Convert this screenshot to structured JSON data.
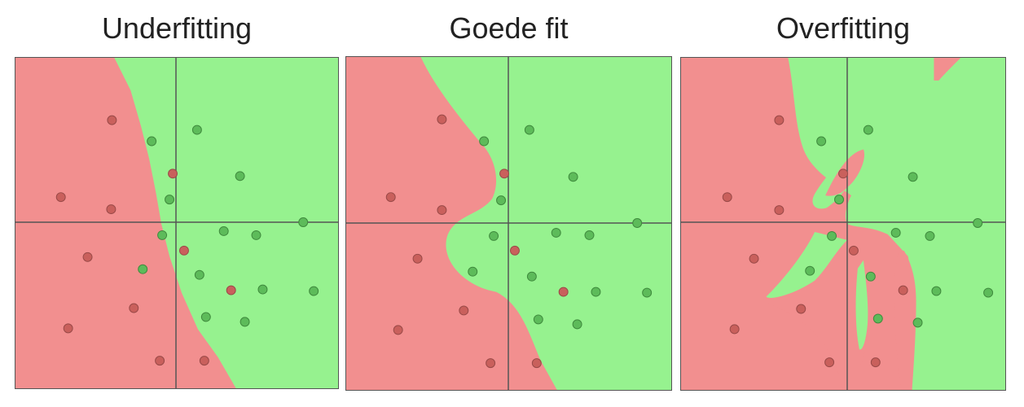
{
  "colors": {
    "class_red_region": "#f28f8f",
    "class_green_region": "#96f28f",
    "red_point": "#c9605c",
    "green_point": "#5dbb5a",
    "axis_line": "#555555"
  },
  "panels": [
    {
      "title": "Underfitting"
    },
    {
      "title": "Goede fit"
    },
    {
      "title": "Overfitting"
    }
  ]
}
